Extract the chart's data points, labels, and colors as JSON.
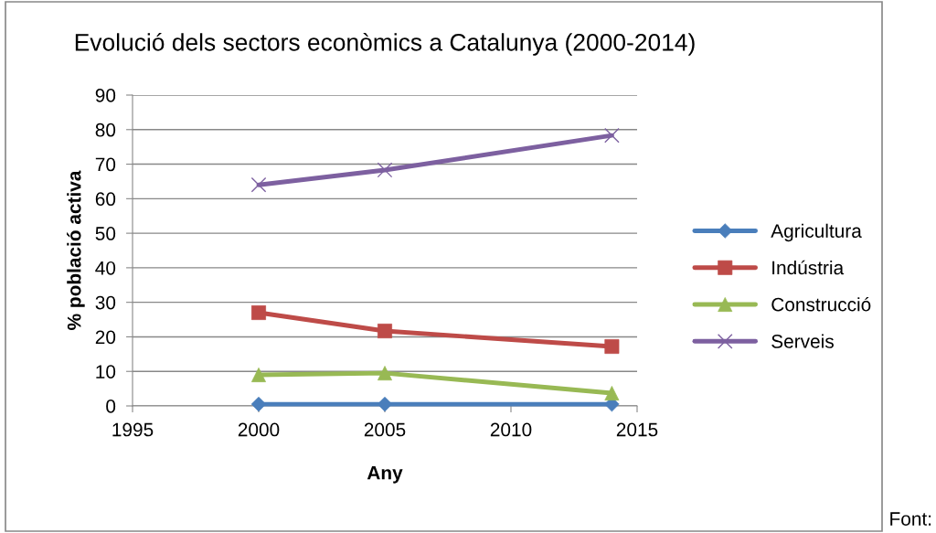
{
  "chart_data": {
    "type": "line",
    "title": "Evolució dels sectors econòmics a Catalunya (2000-2014)",
    "xlabel": "Any",
    "ylabel": "% població activa",
    "x": [
      2000,
      2005,
      2014
    ],
    "series": [
      {
        "name": "Agricultura",
        "color": "#4a7ebb",
        "marker": "diamond",
        "values": [
          0.5,
          0.5,
          0.5
        ]
      },
      {
        "name": "Indústria",
        "color": "#be4b48",
        "marker": "square",
        "values": [
          27,
          21.7,
          17.2
        ]
      },
      {
        "name": "Construcció",
        "color": "#98b954",
        "marker": "triangle",
        "values": [
          9,
          9.5,
          3.7
        ]
      },
      {
        "name": "Serveis",
        "color": "#7d60a0",
        "marker": "cross",
        "values": [
          64,
          68.3,
          78.3
        ]
      }
    ],
    "xlim": [
      1995,
      2015
    ],
    "xticks": [
      1995,
      2000,
      2005,
      2010,
      2015
    ],
    "ylim": [
      0,
      90
    ],
    "yticks": [
      0,
      10,
      20,
      30,
      40,
      50,
      60,
      70,
      80,
      90
    ],
    "grid": "y",
    "legend": "right",
    "line_style": "solid",
    "annotations": [
      "Font:"
    ]
  }
}
